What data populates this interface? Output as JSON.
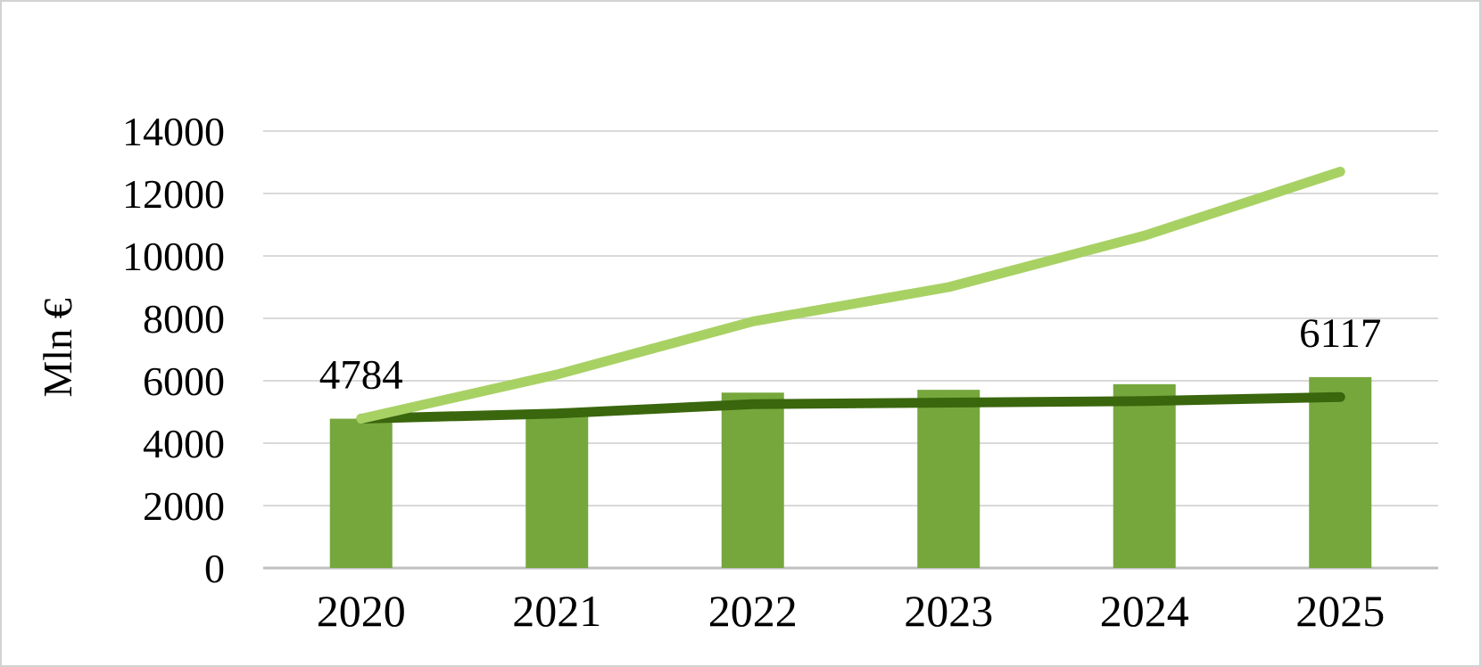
{
  "chart_data": {
    "type": "combo",
    "title": "",
    "ylabel": "Mln €",
    "categories": [
      "2020",
      "2021",
      "2022",
      "2023",
      "2024",
      "2025"
    ],
    "y_ticks": [
      "0",
      "2000",
      "4000",
      "6000",
      "8000",
      "10000",
      "12000",
      "14000"
    ],
    "ylim": [
      0,
      14000
    ],
    "grid": "horizontal",
    "legend": "none",
    "series": [
      {
        "name": "bars",
        "type": "bar",
        "color": "#76A73D",
        "values": [
          4784,
          4900,
          5620,
          5710,
          5890,
          6117
        ],
        "data_labels": [
          {
            "index": 0,
            "text": "4784"
          },
          {
            "index": 5,
            "text": "6117"
          }
        ]
      },
      {
        "name": "light-green-line",
        "type": "line",
        "color": "#A8D164",
        "values": [
          4784,
          6200,
          7900,
          9000,
          10650,
          12700
        ]
      },
      {
        "name": "dark-green-line",
        "type": "line",
        "color": "#3A660D",
        "values": [
          4784,
          4950,
          5250,
          5300,
          5350,
          5480
        ]
      }
    ],
    "colors": {
      "gridline": "#D9D9D9",
      "axis_line": "#C0C0C0",
      "text": "#000000",
      "background": "#FFFFFF",
      "border": "#D2D2D2"
    }
  }
}
